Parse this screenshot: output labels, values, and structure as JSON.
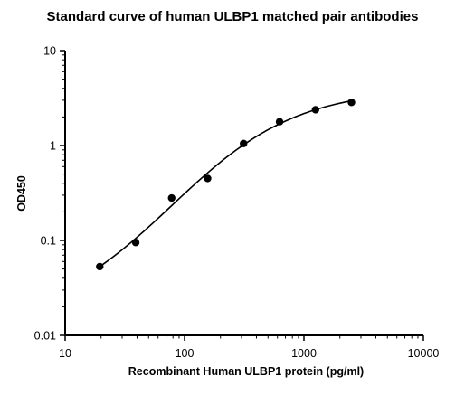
{
  "chart_data": {
    "type": "scatter",
    "title": "Standard curve of human ULBP1 matched pair antibodies",
    "xlabel": "Recombinant Human ULBP1 protein (pg/ml)",
    "ylabel": "OD450",
    "x_scale": "log",
    "y_scale": "log",
    "xlim": [
      10,
      10000
    ],
    "ylim": [
      0.01,
      10
    ],
    "x_ticks": [
      "10",
      "100",
      "1000",
      "10000"
    ],
    "y_ticks": [
      "0.01",
      "0.1",
      "1",
      "10"
    ],
    "grid": false,
    "legend": "none",
    "series": [
      {
        "x": [
          19.5,
          39,
          78,
          156,
          312,
          625,
          1250,
          2500
        ],
        "y": [
          0.053,
          0.095,
          0.28,
          0.45,
          1.05,
          1.78,
          2.38,
          2.85
        ],
        "fit": "sigmoid"
      }
    ]
  }
}
